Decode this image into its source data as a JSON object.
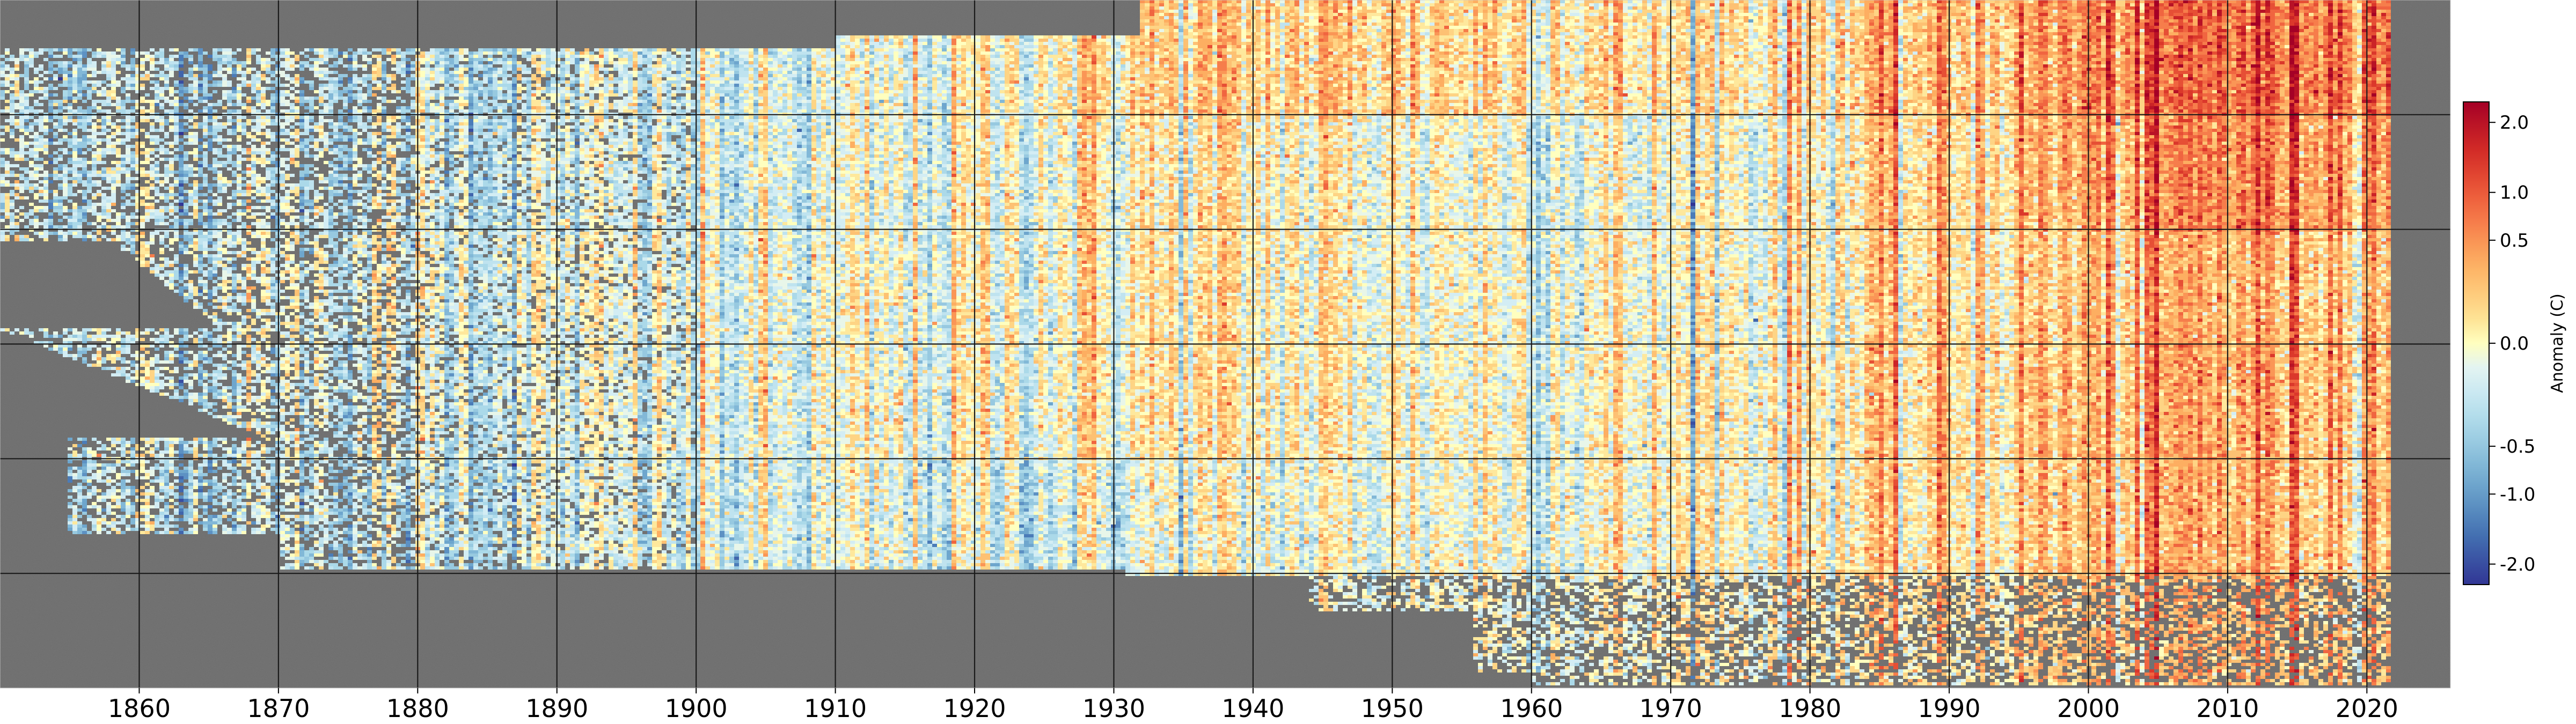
{
  "chart_data": {
    "type": "heatmap",
    "title": "",
    "xlabel": "",
    "ylabel": "",
    "x_range": [
      1850,
      2026
    ],
    "x_ticks": [
      1860,
      1870,
      1880,
      1890,
      1900,
      1910,
      1920,
      1930,
      1940,
      1950,
      1960,
      1970,
      1980,
      1990,
      2000,
      2010,
      2020
    ],
    "grid": true,
    "missing_color": "#6b6b6b",
    "colorbar": {
      "label": "Anomaly (C)",
      "colormap": "RdYlBu_r",
      "ticks": [
        "2.0",
        "1.0",
        "0.5",
        "0.0",
        "-0.5",
        "-1.0",
        "-2.0"
      ],
      "tick_values": [
        2.0,
        1.0,
        0.5,
        0.0,
        -0.5,
        -1.0,
        -2.0
      ],
      "range": [
        -2.5,
        2.5
      ],
      "placement": "right"
    },
    "row_bands": [
      {
        "band": 1,
        "mean_anomaly_by_decade": {
          "1850": -0.6,
          "1870": -0.6,
          "1890": -0.5,
          "1910": -0.4,
          "1930": 0.3,
          "1950": 0.5,
          "1970": 0.2,
          "1990": 0.6,
          "2010": 1.5
        }
      },
      {
        "band": 2,
        "mean_anomaly_by_decade": {
          "1850": -0.5,
          "1870": -0.5,
          "1890": -0.5,
          "1910": -0.4,
          "1930": 0.1,
          "1950": 0.0,
          "1970": -0.2,
          "1990": 0.4,
          "2010": 1.2
        }
      },
      {
        "band": 3,
        "mean_anomaly_by_decade": {
          "1850": -0.4,
          "1870": -0.3,
          "1890": -0.3,
          "1910": -0.3,
          "1930": 0.1,
          "1950": 0.0,
          "1970": -0.1,
          "1990": 0.3,
          "2010": 0.8
        }
      },
      {
        "band": 4,
        "mean_anomaly_by_decade": {
          "1850": -0.5,
          "1870": -0.4,
          "1890": -0.4,
          "1910": -0.3,
          "1930": 0.1,
          "1950": 0.0,
          "1970": 0.0,
          "1990": 0.4,
          "2010": 0.9
        }
      },
      {
        "band": 5,
        "mean_anomaly_by_decade": {
          "1850": -0.6,
          "1870": -0.6,
          "1890": -0.5,
          "1910": -0.4,
          "1930": -0.3,
          "1950": -0.1,
          "1970": 0.0,
          "1990": 0.3,
          "2010": 0.8
        }
      }
    ]
  }
}
